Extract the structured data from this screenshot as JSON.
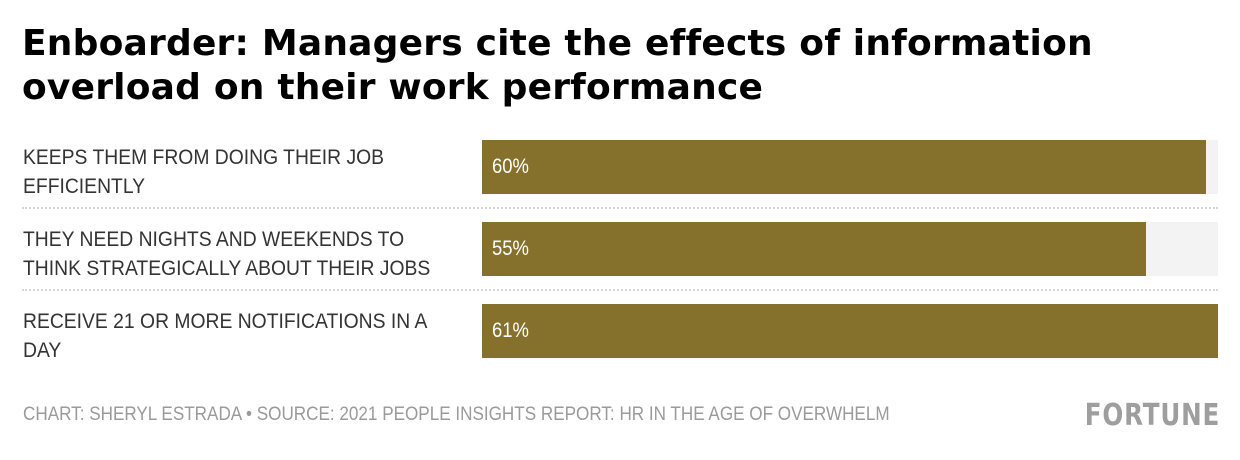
{
  "header": {
    "title": "Enboarder: Managers cite the effects of information overload on their work performance"
  },
  "chart_data": {
    "type": "bar",
    "orientation": "horizontal",
    "title": "Enboarder: Managers cite the effects of information overload on their work performance",
    "categories": [
      "KEEPS THEM FROM DOING THEIR JOB EFFICIENTLY",
      "THEY NEED NIGHTS AND WEEKENDS TO THINK STRATEGICALLY ABOUT THEIR JOBS",
      "RECEIVE 21 OR MORE NOTIFICATIONS IN A DAY"
    ],
    "values": [
      60,
      55,
      61
    ],
    "value_labels": [
      "60%",
      "55%",
      "61%"
    ],
    "xlim": [
      0,
      61
    ],
    "xlabel": "",
    "ylabel": "",
    "grid": false,
    "colors": {
      "bar": "#85712b",
      "track": "#f3f3f3"
    }
  },
  "footer": {
    "credit": "CHART: SHERYL ESTRADA • SOURCE: 2021 PEOPLE INSIGHTS REPORT: HR IN THE AGE OF OVERWHELM",
    "logo": "FORTUNE"
  }
}
